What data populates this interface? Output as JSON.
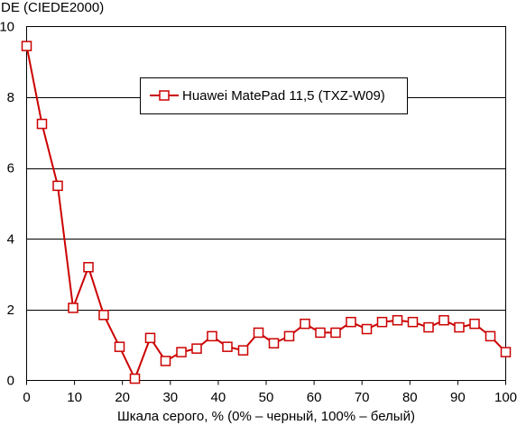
{
  "chart_data": {
    "type": "line",
    "ylabel": "DE (CIEDE2000)",
    "xlabel": "Шкала серого, % (0% – черный, 100% – белый)",
    "xlim": [
      0,
      100
    ],
    "ylim": [
      0,
      10
    ],
    "xticks": [
      0,
      10,
      20,
      30,
      40,
      50,
      60,
      70,
      80,
      90,
      100
    ],
    "yticks": [
      0,
      2,
      4,
      6,
      8,
      10
    ],
    "grid": "horizontal",
    "legend_position": "upper-center",
    "series": [
      {
        "name": "Huawei MatePad 11,5 (TXZ-W09)",
        "color": "#cc0000",
        "marker": "open-square",
        "x": [
          0,
          3.2,
          6.5,
          9.7,
          12.9,
          16.1,
          19.4,
          22.6,
          25.8,
          29.0,
          32.3,
          35.5,
          38.7,
          41.9,
          45.2,
          48.4,
          51.6,
          54.8,
          58.1,
          61.3,
          64.5,
          67.7,
          71.0,
          74.2,
          77.4,
          80.6,
          83.9,
          87.1,
          90.3,
          93.5,
          96.8,
          100
        ],
        "y": [
          9.45,
          7.25,
          5.5,
          2.05,
          3.2,
          1.85,
          0.95,
          0.05,
          1.2,
          0.55,
          0.8,
          0.9,
          1.25,
          0.95,
          0.85,
          1.35,
          1.05,
          1.25,
          1.6,
          1.35,
          1.35,
          1.65,
          1.45,
          1.65,
          1.7,
          1.65,
          1.5,
          1.7,
          1.5,
          1.6,
          1.25,
          0.8
        ]
      }
    ]
  }
}
